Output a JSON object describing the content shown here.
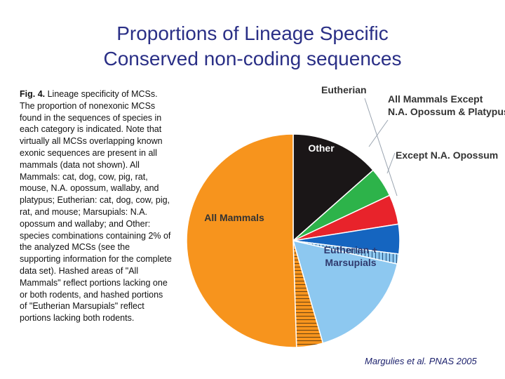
{
  "slide": {
    "title_line1": "Proportions of Lineage Specific",
    "title_line2": "Conserved non-coding sequences",
    "caption_label": "Fig. 4.",
    "caption_text": "Lineage specificity of MCSs. The proportion of nonexonic MCSs found in the sequences of species in each category is indicated. Note that virtually all MCSs overlapping known exonic sequences are present in all mammals (data not shown). All Mammals: cat, dog, cow, pig, rat, mouse, N.A. opossum, wallaby, and platypus; Eutherian: cat, dog, cow, pig, rat, and mouse; Marsupials: N.A. opossum and wallaby; and Other: species combinations containing 2% of the analyzed MCSs (see the supporting information for the complete data set). Hashed areas of \"All Mammals\" reflect portions lacking one or both rodents, and hashed portions of \"Eutherian Marsupials\" reflect portions lacking both rodents.",
    "credit": "Margulies et al. PNAS 2005"
  },
  "chart_data": {
    "type": "pie",
    "title": "",
    "start_angle_deg": 0,
    "direction": "clockwise",
    "slices": [
      {
        "name": "Other",
        "label_lines": [
          "Other"
        ],
        "value": 13.5,
        "color": "#1a1617",
        "label_color": "#ffffff"
      },
      {
        "name": "All Mammals Except N.A. Opossum & Platypus",
        "label_lines": [
          "All Mammals Except",
          "N.A. Opossum & Platypus"
        ],
        "value": 4.5,
        "color": "#2db34a",
        "label_color": "#333333"
      },
      {
        "name": "Except N.A. Opossum",
        "label_lines": [
          "Except N.A. Opossum"
        ],
        "value": 4.5,
        "color": "#e8232b",
        "label_color": "#333333"
      },
      {
        "name": "Eutherian",
        "label_lines": [
          "Eutherian"
        ],
        "value": 4.5,
        "color": "#1565c0",
        "label_color": "#333333"
      },
      {
        "name": "Eutherian + Marsupials (hashed)",
        "label_lines": [],
        "value": 1.5,
        "color": "#8dc8f0",
        "hatch": "vertical"
      },
      {
        "name": "Eutherian + Marsupials",
        "label_lines": [
          "Eutherian +",
          "Marsupials"
        ],
        "value": 17.0,
        "color": "#8dc8f0",
        "label_color": "#2f3a6e"
      },
      {
        "name": "All Mammals (hashed)",
        "label_lines": [],
        "value": 4.0,
        "color": "#f7941d",
        "hatch": "horizontal"
      },
      {
        "name": "All Mammals",
        "label_lines": [
          "All Mammals"
        ],
        "value": 50.5,
        "color": "#f7941d",
        "label_color": "#333333"
      }
    ]
  }
}
